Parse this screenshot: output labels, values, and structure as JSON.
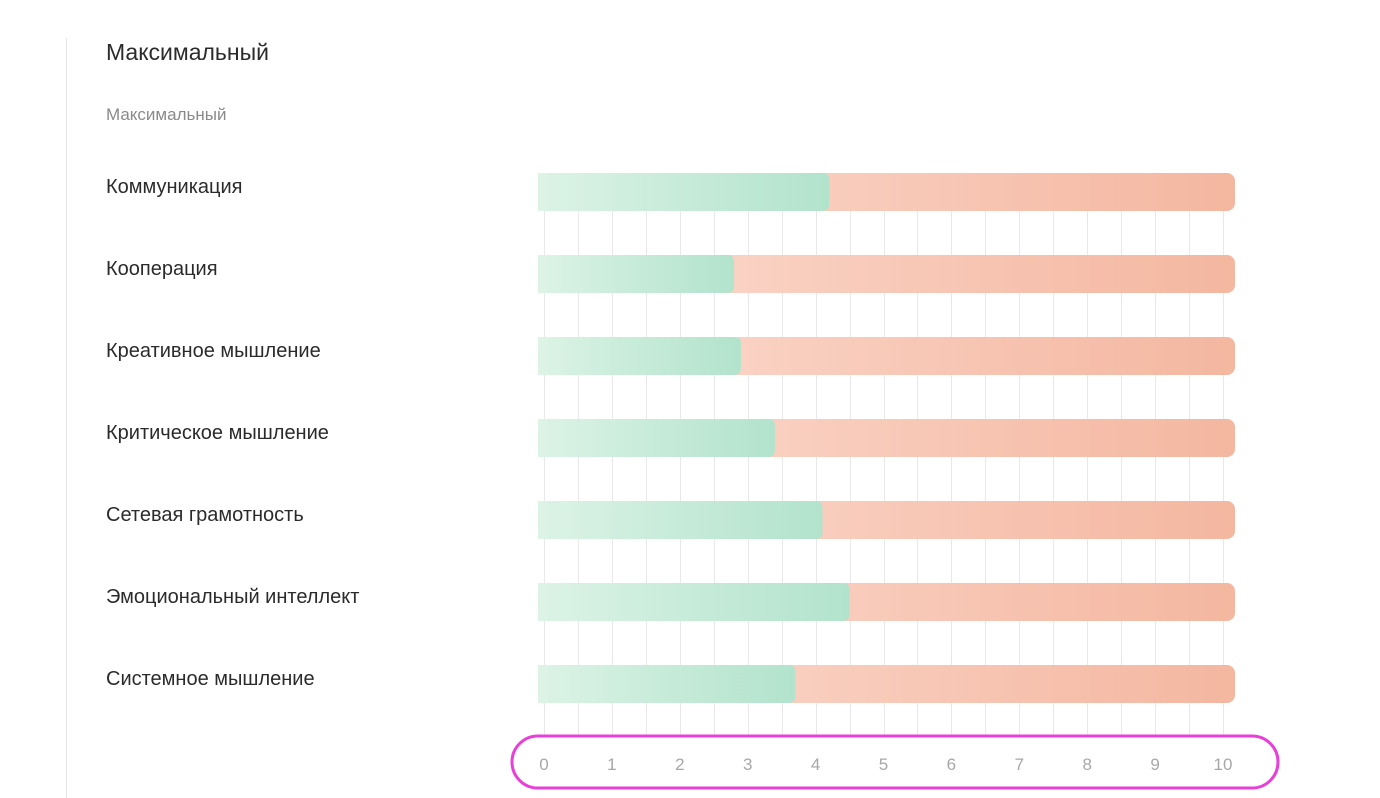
{
  "card": {
    "title": "Максимальный",
    "subtitle": "Максимальный"
  },
  "chart_data": {
    "type": "bar",
    "orientation": "horizontal",
    "stacked": true,
    "categories": [
      "Коммуникация",
      "Кооперация",
      "Креативное мышление",
      "Критическое мышление",
      "Сетевая грамотность",
      "Эмоциональный интеллект",
      "Системное мышление"
    ],
    "values": [
      4.2,
      2.8,
      2.9,
      3.4,
      4.1,
      4.5,
      3.7
    ],
    "max": 10,
    "xlim": [
      0,
      10
    ],
    "x_ticks": [
      "0",
      "1",
      "2",
      "3",
      "4",
      "5",
      "6",
      "7",
      "8",
      "9",
      "10"
    ],
    "grid": true,
    "colors": {
      "value_start": "#dcf3e6",
      "value_end": "#b2e3cc",
      "remainder_start": "#fcdcd1",
      "remainder_end": "#f4b7a0",
      "grid": "#e8e8e8",
      "highlight_ring": "#e83fd9"
    }
  }
}
